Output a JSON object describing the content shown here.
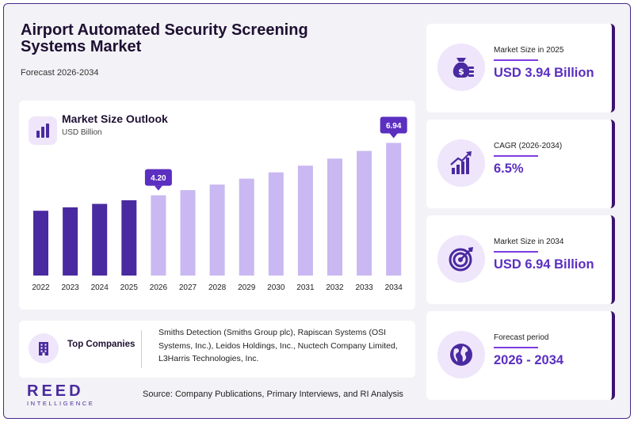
{
  "header": {
    "title": "Airport Automated Security Screening Systems Market",
    "subtitle": "Forecast 2026-2034"
  },
  "chart": {
    "title": "Market Size Outlook",
    "unit": "USD Billion",
    "icon": "bar-chart-icon"
  },
  "chart_data": {
    "type": "bar",
    "categories": [
      "2022",
      "2023",
      "2024",
      "2025",
      "2026",
      "2027",
      "2028",
      "2029",
      "2030",
      "2031",
      "2032",
      "2033",
      "2034"
    ],
    "values": [
      3.39,
      3.57,
      3.75,
      3.94,
      4.2,
      4.47,
      4.76,
      5.07,
      5.4,
      5.75,
      6.12,
      6.52,
      6.94
    ],
    "ylim": [
      0,
      7.5
    ],
    "annotations": [
      {
        "category": "2026",
        "label": "4.20"
      },
      {
        "category": "2034",
        "label": "6.94"
      }
    ],
    "colors": {
      "historical": "#4a2aa0",
      "forecast": "#c9b8f1"
    },
    "grid": false,
    "legend": "none"
  },
  "companies": {
    "label": "Top Companies",
    "icon": "building-icon",
    "text": "Smiths Detection (Smiths Group plc), Rapiscan Systems (OSI Systems, Inc.), Leidos Holdings, Inc., Nuctech Company Limited, L3Harris Technologies, Inc."
  },
  "logo": {
    "main": "REED",
    "sub": "INTELLIGENCE"
  },
  "source": "Source: Company Publications, Primary Interviews, and RI Analysis",
  "kpis": [
    {
      "label": "Market Size in 2025",
      "value": "USD 3.94 Billion",
      "icon": "money-bag-icon"
    },
    {
      "label": "CAGR (2026-2034)",
      "value": "6.5%",
      "icon": "growth-chart-icon"
    },
    {
      "label": "Market Size in 2034",
      "value": "USD 6.94 Billion",
      "icon": "target-icon"
    },
    {
      "label": "Forecast period",
      "value": "2026 - 2034",
      "icon": "globe-icon"
    }
  ],
  "colors": {
    "accent": "#5b2fc0",
    "dark": "#3b1270",
    "soft": "#efe6fb"
  }
}
